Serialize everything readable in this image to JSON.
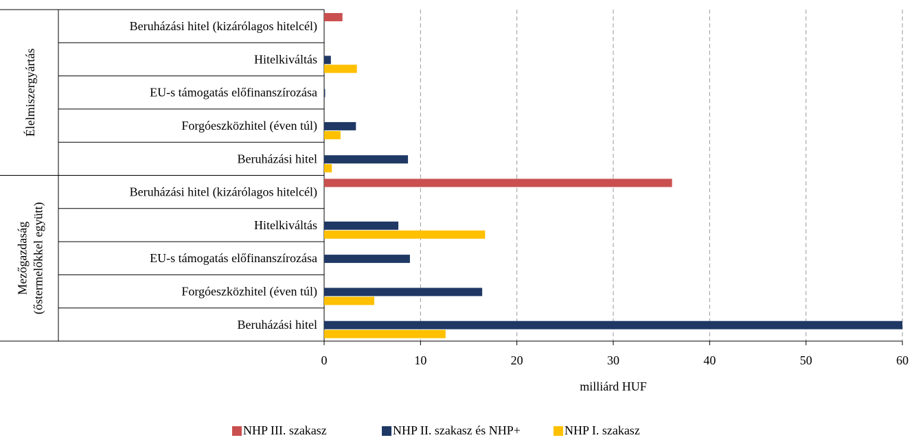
{
  "chart_data": {
    "type": "bar",
    "orientation": "horizontal",
    "groups": [
      {
        "name": [
          "Élelmiszergyártás"
        ],
        "categories": [
          "Beruházási hitel (kizárólagos hitelcél)",
          "Hitelkiváltás",
          "EU-s támogatás előfinanszírozása",
          "Forgóeszközhitel (éven túl)",
          "Beruházási hitel"
        ]
      },
      {
        "name": [
          "Mezőgazdaság",
          "(őstermelőkkel együtt)"
        ],
        "categories": [
          "Beruházási hitel (kizárólagos hitelcél)",
          "Hitelkiváltás",
          "EU-s támogatás előfinanszírozása",
          "Forgóeszközhitel (éven túl)",
          "Beruházási hitel"
        ]
      }
    ],
    "series": [
      {
        "name": "NHP III. szakasz",
        "color": "#c9504f",
        "values": [
          1.9,
          null,
          null,
          null,
          null,
          36.1,
          null,
          null,
          null,
          null
        ]
      },
      {
        "name": "NHP II. szakasz és NHP+",
        "color": "#1f3864",
        "values": [
          null,
          0.7,
          0.1,
          3.3,
          8.7,
          null,
          7.7,
          8.9,
          16.4,
          60
        ]
      },
      {
        "name": "NHP I. szakasz",
        "color": "#ffc000",
        "values": [
          null,
          3.4,
          null,
          1.7,
          0.8,
          null,
          16.7,
          null,
          5.2,
          12.6
        ]
      }
    ],
    "xlabel": "milliárd HUF",
    "xlim": [
      0,
      60
    ],
    "xticks": [
      0,
      10,
      20,
      30,
      40,
      50,
      60
    ],
    "grid": true,
    "legend": "bottom"
  }
}
